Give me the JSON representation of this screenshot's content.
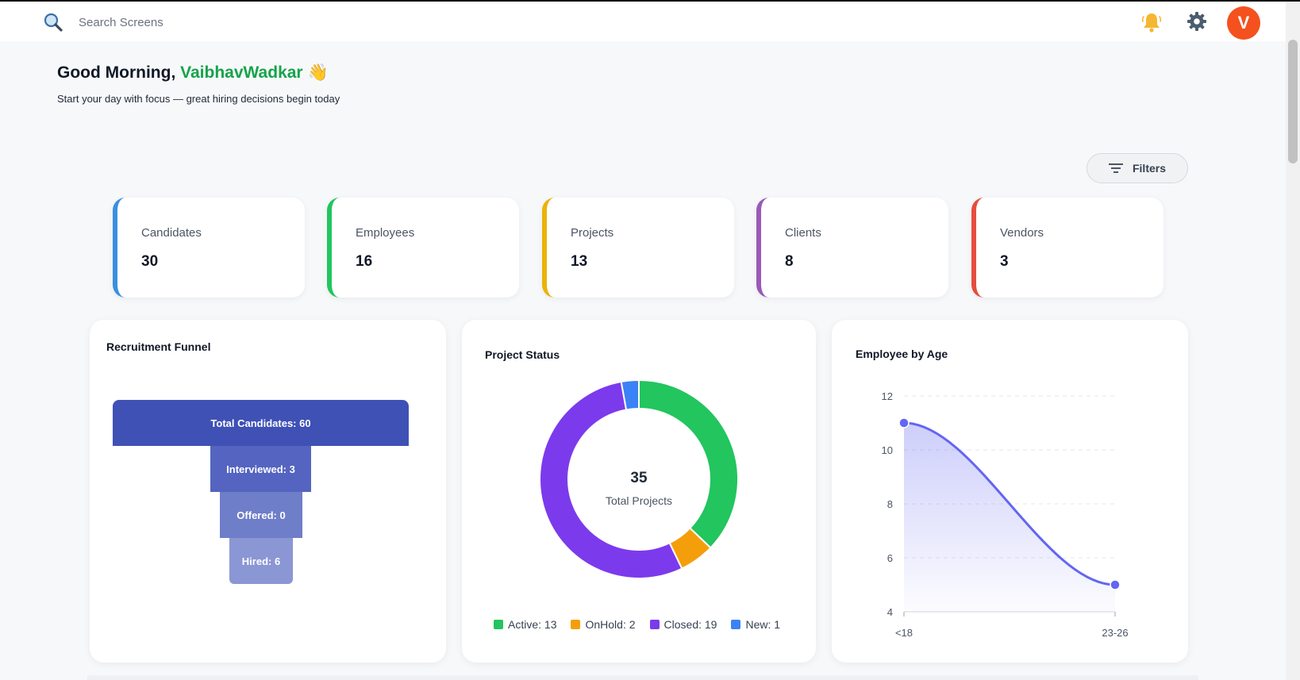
{
  "search": {
    "placeholder": "Search Screens"
  },
  "header": {
    "avatar_initial": "V"
  },
  "greeting": {
    "prefix": "Good Morning,",
    "name": "VaibhavWadkar",
    "emoji": "👋",
    "subtitle": "Start your day with focus — great hiring decisions begin today"
  },
  "filters": {
    "label": "Filters"
  },
  "stats": [
    {
      "label": "Candidates",
      "value": "30",
      "color": "#3b8fe0"
    },
    {
      "label": "Employees",
      "value": "16",
      "color": "#22c55e"
    },
    {
      "label": "Projects",
      "value": "13",
      "color": "#eab308"
    },
    {
      "label": "Clients",
      "value": "8",
      "color": "#9b59b6"
    },
    {
      "label": "Vendors",
      "value": "3",
      "color": "#e74c3c"
    }
  ],
  "funnel": {
    "title": "Recruitment Funnel",
    "steps": [
      {
        "label": "Total Candidates: 60",
        "color": "#3f51b5"
      },
      {
        "label": "Interviewed: 3",
        "color": "#5464c0"
      },
      {
        "label": "Offered: 0",
        "color": "#6f7ec9"
      },
      {
        "label": "Hired: 6",
        "color": "#8b96d4"
      }
    ]
  },
  "project_status": {
    "title": "Project Status",
    "center_value": "35",
    "center_label": "Total Projects",
    "legend": [
      {
        "label": "Active: 13",
        "color": "#22c55e"
      },
      {
        "label": "OnHold: 2",
        "color": "#f59e0b"
      },
      {
        "label": "Closed: 19",
        "color": "#7c3aed"
      },
      {
        "label": "New: 1",
        "color": "#3b82f6"
      }
    ]
  },
  "age_chart": {
    "title": "Employee by Age"
  },
  "chart_data": [
    {
      "type": "bar",
      "title": "Recruitment Funnel",
      "categories": [
        "Total Candidates",
        "Interviewed",
        "Offered",
        "Hired"
      ],
      "values": [
        60,
        3,
        0,
        6
      ]
    },
    {
      "type": "pie",
      "title": "Project Status",
      "categories": [
        "Active",
        "OnHold",
        "Closed",
        "New"
      ],
      "values": [
        13,
        2,
        19,
        1
      ],
      "colors": [
        "#22c55e",
        "#f59e0b",
        "#7c3aed",
        "#3b82f6"
      ],
      "total": 35,
      "legend": "bottom"
    },
    {
      "type": "area",
      "title": "Employee by Age",
      "categories": [
        "<18",
        "23-26"
      ],
      "values": [
        11,
        5
      ],
      "yticks": [
        4,
        6,
        8,
        10,
        12
      ],
      "ylim": [
        4,
        12
      ],
      "grid": true,
      "color": "#6366f1"
    }
  ]
}
